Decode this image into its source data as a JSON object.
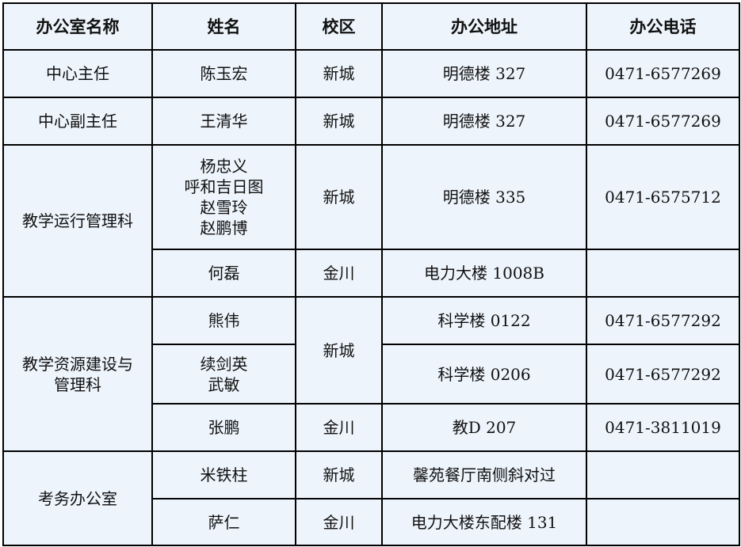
{
  "headers": [
    "办公室名称",
    "姓名",
    "校区",
    "办公地址",
    "办公电话"
  ],
  "rows": {
    "r1": {
      "office": "中心主任",
      "name": "陈玉宏",
      "campus": "新城",
      "address": "明德楼 327",
      "phone": "0471-6577269"
    },
    "r2": {
      "office": "中心副主任",
      "name": "王清华",
      "campus": "新城",
      "address": "明德楼 327",
      "phone": "0471-6577269"
    },
    "r3": {
      "office": "教学运行管理科",
      "names": [
        "杨忠义",
        "呼和吉日图",
        "赵雪玲",
        "赵鹏博"
      ],
      "campus": "新城",
      "address": "明德楼 335",
      "phone": "0471-6575712"
    },
    "r4": {
      "name": "何磊",
      "campus": "金川",
      "address": "电力大楼 1008B",
      "phone": ""
    },
    "r5": {
      "office_lines": [
        "教学资源建设与",
        "管理科"
      ],
      "name": "熊伟",
      "campus": "新城",
      "address": "科学楼 0122",
      "phone": "0471-6577292"
    },
    "r6": {
      "names": [
        "续剑英",
        "武敏"
      ],
      "address": "科学楼 0206",
      "phone": "0471-6577292"
    },
    "r7": {
      "name": "张鹏",
      "campus": "金川",
      "address": "教D 207",
      "phone": "0471-3811019"
    },
    "r8": {
      "office": "考务办公室",
      "name": "米铁柱",
      "campus": "新城",
      "address": "馨苑餐厅南侧斜对过",
      "phone": ""
    },
    "r9": {
      "name": "萨仁",
      "campus": "金川",
      "address": "电力大楼东配楼 131",
      "phone": ""
    }
  }
}
